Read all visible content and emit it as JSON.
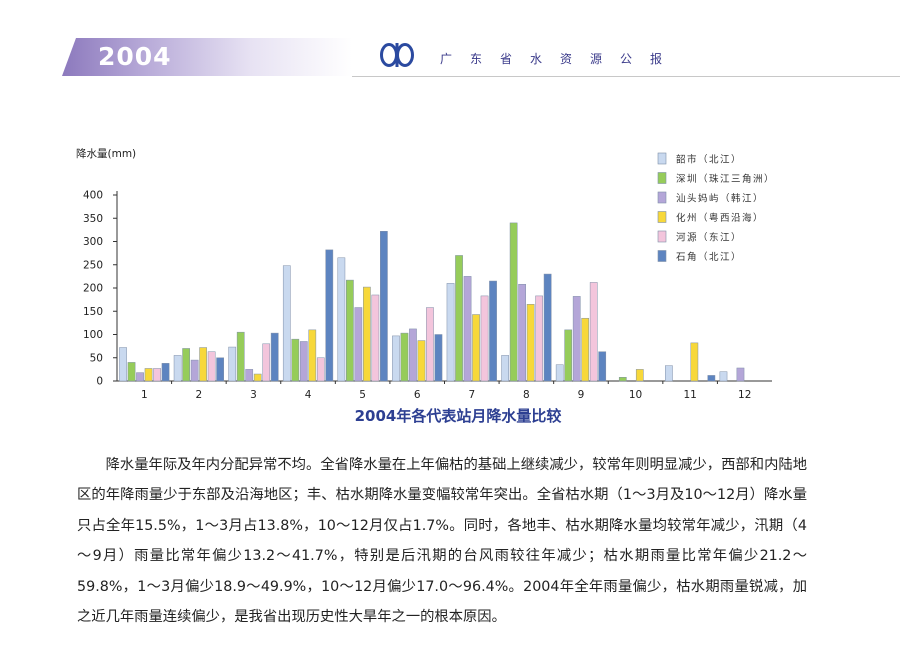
{
  "header": {
    "year": "2004",
    "publication_title": "广东省水资源公报",
    "logo_icon": "water-resources-logo-icon",
    "accent_color": "#8c79bd",
    "logo_color": "#2b4aa0"
  },
  "chart_data": {
    "type": "bar",
    "title": "2004年各代表站月降水量比较",
    "ylabel": "降水量(mm)",
    "xlabel": "",
    "categories": [
      "1",
      "2",
      "3",
      "4",
      "5",
      "6",
      "7",
      "8",
      "9",
      "10",
      "11",
      "12"
    ],
    "ylim": [
      0,
      400
    ],
    "yticks": [
      0,
      50,
      100,
      150,
      200,
      250,
      300,
      350,
      400
    ],
    "legend_position": "top-right",
    "series": [
      {
        "name": "韶市（北江）",
        "color": "#c9d9ef",
        "values": [
          72,
          55,
          73,
          248,
          265,
          97,
          210,
          55,
          35,
          0,
          33,
          20
        ]
      },
      {
        "name": "深圳（珠江三角洲）",
        "color": "#96cc5a",
        "values": [
          40,
          70,
          105,
          90,
          217,
          103,
          270,
          340,
          110,
          8,
          0,
          0
        ]
      },
      {
        "name": "汕头妈屿（韩江）",
        "color": "#b4a6d8",
        "values": [
          18,
          45,
          25,
          85,
          158,
          112,
          225,
          208,
          182,
          0,
          0,
          28
        ]
      },
      {
        "name": "化州（粤西沿海）",
        "color": "#f7d83a",
        "values": [
          27,
          72,
          15,
          110,
          202,
          87,
          143,
          165,
          135,
          25,
          82,
          0
        ]
      },
      {
        "name": "河源（东江）",
        "color": "#f3c5dc",
        "values": [
          27,
          63,
          80,
          50,
          185,
          158,
          183,
          183,
          212,
          0,
          0,
          0
        ]
      },
      {
        "name": "石角（北江）",
        "color": "#5d84c0",
        "values": [
          38,
          50,
          103,
          282,
          322,
          100,
          215,
          230,
          63,
          0,
          12,
          0
        ]
      }
    ]
  },
  "body": {
    "paragraph": "降水量年际及年内分配异常不均。全省降水量在上年偏枯的基础上继续减少，较常年则明显减少，西部和内陆地区的年降雨量少于东部及沿海地区；丰、枯水期降水量变幅较常年突出。全省枯水期（1～3月及10～12月）降水量只占全年15.5%，1～3月占13.8%，10～12月仅占1.7%。同时，各地丰、枯水期降水量均较常年减少，汛期（4～9月）雨量比常年偏少13.2～41.7%，特别是后汛期的台风雨较往年减少；枯水期雨量比常年偏少21.2～59.8%，1～3月偏少18.9～49.9%，10～12月偏少17.0～96.4%。2004年全年雨量偏少，枯水期雨量锐减，加之近几年雨量连续偏少，是我省出现历史性大旱年之一的根本原因。"
  }
}
